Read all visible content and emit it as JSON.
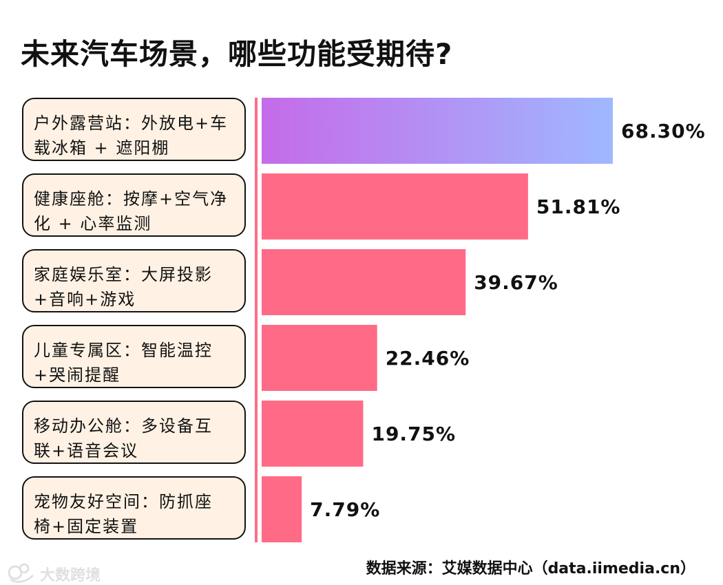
{
  "title": "未来汽车场景，哪些功能受期待?",
  "source": "数据来源：艾媒数据中心（data.iimedia.cn）",
  "watermark": {
    "text": "大数跨境"
  },
  "colors": {
    "bar": "#ff6b87",
    "gradient_start": "#c56be9",
    "gradient_end": "#9fb8ff",
    "axis": "#ff6b87",
    "category_background": "#fff2e4",
    "category_border": "#111111"
  },
  "chart_data": {
    "type": "bar",
    "orientation": "horizontal",
    "categories": [
      "户外露营站：外放电+车载冰箱 + 遮阳棚",
      "健康座舱：按摩+空气净化 + 心率监测",
      "家庭娱乐室：大屏投影+音响+游戏",
      "儿童专属区：智能温控+哭闹提醒",
      "移动办公舱：多设备互联+语音会议",
      "宠物友好空间：防抓座椅+固定装置"
    ],
    "category_lines": [
      [
        "户外露营站：外放电+车",
        "载冰箱 + 遮阳棚"
      ],
      [
        "健康座舱：按摩+空气净",
        "化 + 心率监测"
      ],
      [
        "家庭娱乐室：大屏投影",
        "+音响+游戏"
      ],
      [
        "儿童专属区：智能温控",
        "+哭闹提醒"
      ],
      [
        "移动办公舱：多设备互",
        "联+语音会议"
      ],
      [
        "宠物友好空间：防抓座",
        "椅+固定装置"
      ]
    ],
    "values": [
      68.3,
      51.81,
      39.67,
      22.46,
      19.75,
      7.79
    ],
    "value_labels": [
      "68.30%",
      "51.81%",
      "39.67%",
      "22.46%",
      "19.75%",
      "7.79%"
    ],
    "xlim": [
      0,
      68.3
    ],
    "grid": false,
    "legend": "none"
  }
}
